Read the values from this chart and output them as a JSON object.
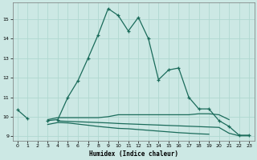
{
  "title": "",
  "xlabel": "Humidex (Indice chaleur)",
  "bg_color": "#cce8e4",
  "grid_color": "#b0d8d0",
  "line_color": "#1a6b5a",
  "x": [
    0,
    1,
    2,
    3,
    4,
    5,
    6,
    7,
    8,
    9,
    10,
    11,
    12,
    13,
    14,
    15,
    16,
    17,
    18,
    19,
    20,
    21,
    22,
    23
  ],
  "series1": [
    10.35,
    9.9,
    null,
    9.8,
    9.85,
    11.0,
    11.85,
    13.0,
    14.2,
    15.55,
    15.2,
    14.4,
    15.1,
    14.0,
    11.9,
    12.4,
    12.5,
    11.0,
    10.4,
    10.4,
    9.8,
    9.5,
    9.05,
    9.05
  ],
  "series2": [
    null,
    null,
    null,
    9.85,
    9.95,
    9.95,
    9.95,
    9.95,
    9.95,
    10.0,
    10.1,
    10.1,
    10.1,
    10.1,
    10.1,
    10.1,
    10.1,
    10.1,
    10.15,
    10.15,
    10.1,
    9.85,
    null,
    null
  ],
  "series3": [
    null,
    null,
    null,
    9.6,
    9.7,
    9.68,
    9.62,
    9.56,
    9.5,
    9.45,
    9.4,
    9.38,
    9.34,
    9.3,
    9.26,
    9.22,
    9.18,
    9.15,
    9.12,
    9.1,
    null,
    null,
    null,
    null
  ],
  "series4": [
    null,
    null,
    null,
    null,
    9.78,
    9.76,
    9.74,
    9.72,
    9.7,
    9.68,
    9.65,
    9.63,
    9.61,
    9.59,
    9.57,
    9.55,
    9.53,
    9.51,
    9.49,
    9.47,
    9.45,
    9.15,
    9.02,
    9.02
  ],
  "ylim": [
    8.75,
    15.85
  ],
  "xlim": [
    -0.5,
    23.5
  ],
  "yticks": [
    9,
    10,
    11,
    12,
    13,
    14,
    15
  ],
  "xticks": [
    0,
    1,
    2,
    3,
    4,
    5,
    6,
    7,
    8,
    9,
    10,
    11,
    12,
    13,
    14,
    15,
    16,
    17,
    18,
    19,
    20,
    21,
    22,
    23
  ]
}
